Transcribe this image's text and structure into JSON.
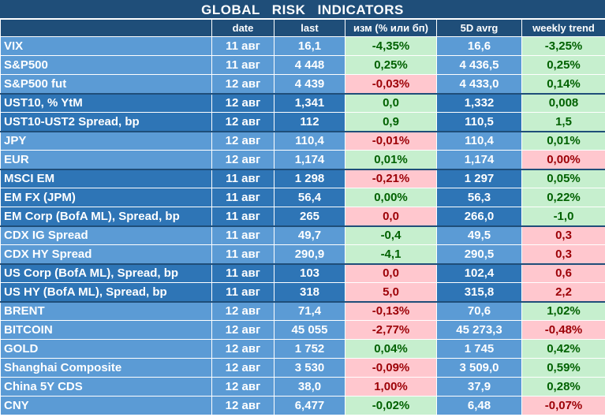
{
  "title": "GLOBAL  RISK  INDICATORS",
  "headers": [
    "",
    "date",
    "last",
    "изм (% или бп)",
    "5D avrg",
    "weekly trend"
  ],
  "rows": [
    {
      "name": "VIX",
      "date": "11 авг",
      "last": "16,1",
      "chg": "-4,35%",
      "chg_s": "pos",
      "avg": "16,6",
      "trend": "-3,25%",
      "trend_s": "pos",
      "group": "light",
      "sep": false
    },
    {
      "name": "S&P500",
      "date": "11 авг",
      "last": "4 448",
      "chg": "0,25%",
      "chg_s": "pos",
      "avg": "4 436,5",
      "trend": "0,25%",
      "trend_s": "pos",
      "group": "light",
      "sep": false
    },
    {
      "name": "S&P500 fut",
      "date": "12 авг",
      "last": "4 439",
      "chg": "-0,03%",
      "chg_s": "neg",
      "avg": "4 433,0",
      "trend": "0,14%",
      "trend_s": "pos",
      "group": "light",
      "sep": false
    },
    {
      "name": "UST10, % YtM",
      "date": "12 авг",
      "last": "1,341",
      "chg": "0,0",
      "chg_s": "pos",
      "avg": "1,332",
      "trend": "0,008",
      "trend_s": "pos",
      "group": "dark",
      "sep": true
    },
    {
      "name": "UST10-UST2 Spread, bp",
      "date": "12 авг",
      "last": "112",
      "chg": "0,9",
      "chg_s": "pos",
      "avg": "110,5",
      "trend": "1,5",
      "trend_s": "pos",
      "group": "dark",
      "sep": false
    },
    {
      "name": "JPY",
      "date": "12 авг",
      "last": "110,4",
      "chg": "-0,01%",
      "chg_s": "neg",
      "avg": "110,4",
      "trend": "0,01%",
      "trend_s": "pos",
      "group": "light",
      "sep": true
    },
    {
      "name": "EUR",
      "date": "12 авг",
      "last": "1,174",
      "chg": "0,01%",
      "chg_s": "pos",
      "avg": "1,174",
      "trend": "0,00%",
      "trend_s": "neg",
      "group": "light",
      "sep": false
    },
    {
      "name": "MSCI EM",
      "date": "11 авг",
      "last": "1 298",
      "chg": "-0,21%",
      "chg_s": "neg",
      "avg": "1 297",
      "trend": "0,05%",
      "trend_s": "pos",
      "group": "dark",
      "sep": true
    },
    {
      "name": "EM FX (JPM)",
      "date": "11 авг",
      "last": "56,4",
      "chg": "0,00%",
      "chg_s": "pos",
      "avg": "56,3",
      "trend": "0,22%",
      "trend_s": "pos",
      "group": "dark",
      "sep": false
    },
    {
      "name": "EM Corp (BofA ML), Spread, bp",
      "date": "11 авг",
      "last": "265",
      "chg": "0,0",
      "chg_s": "neg",
      "avg": "266,0",
      "trend": "-1,0",
      "trend_s": "pos",
      "group": "dark",
      "sep": false
    },
    {
      "name": "CDX IG Spread",
      "date": "11 авг",
      "last": "49,7",
      "chg": "-0,4",
      "chg_s": "pos",
      "avg": "49,5",
      "trend": "0,3",
      "trend_s": "neg",
      "group": "light",
      "sep": true
    },
    {
      "name": "CDX HY Spread",
      "date": "11 авг",
      "last": "290,9",
      "chg": "-4,1",
      "chg_s": "pos",
      "avg": "290,5",
      "trend": "0,3",
      "trend_s": "neg",
      "group": "light",
      "sep": false
    },
    {
      "name": "US Corp (BofA ML), Spread, bp",
      "date": "11 авг",
      "last": "103",
      "chg": "0,0",
      "chg_s": "neg",
      "avg": "102,4",
      "trend": "0,6",
      "trend_s": "neg",
      "group": "dark",
      "sep": true
    },
    {
      "name": "US HY (BofA ML), Spread, bp",
      "date": "11 авг",
      "last": "318",
      "chg": "5,0",
      "chg_s": "neg",
      "avg": "315,8",
      "trend": "2,2",
      "trend_s": "neg",
      "group": "dark",
      "sep": false
    },
    {
      "name": "BRENT",
      "date": "12 авг",
      "last": "71,4",
      "chg": "-0,13%",
      "chg_s": "neg",
      "avg": "70,6",
      "trend": "1,02%",
      "trend_s": "pos",
      "group": "light",
      "sep": true
    },
    {
      "name": "BITCOIN",
      "date": "12 авг",
      "last": "45 055",
      "chg": "-2,77%",
      "chg_s": "neg",
      "avg": "45 273,3",
      "trend": "-0,48%",
      "trend_s": "neg",
      "group": "light",
      "sep": false
    },
    {
      "name": "GOLD",
      "date": "12 авг",
      "last": "1 752",
      "chg": "0,04%",
      "chg_s": "pos",
      "avg": "1 745",
      "trend": "0,42%",
      "trend_s": "pos",
      "group": "light",
      "sep": false
    },
    {
      "name": "Shanghai Composite",
      "date": "12 авг",
      "last": "3 530",
      "chg": "-0,09%",
      "chg_s": "neg",
      "avg": "3 509,0",
      "trend": "0,59%",
      "trend_s": "pos",
      "group": "light",
      "sep": false
    },
    {
      "name": "China 5Y CDS",
      "date": "12 авг",
      "last": "38,0",
      "chg": "1,00%",
      "chg_s": "neg",
      "avg": "37,9",
      "trend": "0,28%",
      "trend_s": "pos",
      "group": "light",
      "sep": false
    },
    {
      "name": "CNY",
      "date": "12 авг",
      "last": "6,477",
      "chg": "-0,02%",
      "chg_s": "pos",
      "avg": "6,48",
      "trend": "-0,07%",
      "trend_s": "neg",
      "group": "light",
      "sep": false
    }
  ]
}
